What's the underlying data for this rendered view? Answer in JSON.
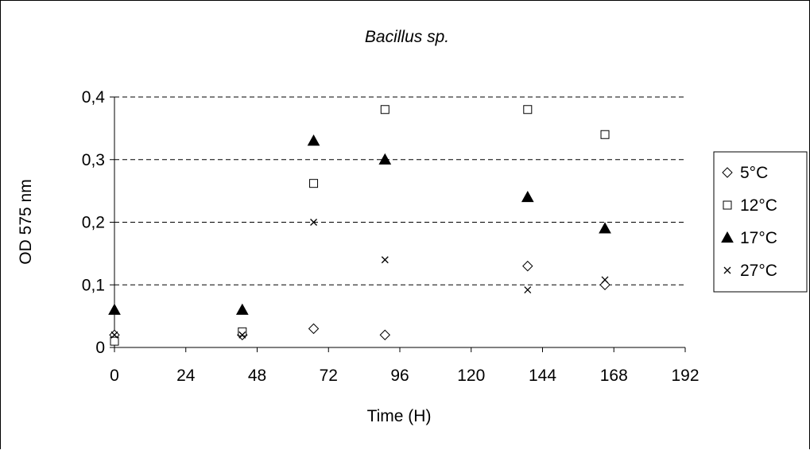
{
  "chart_data": {
    "type": "scatter",
    "title": "Bacillus sp.",
    "xlabel": "Time (H)",
    "ylabel": "OD 575 nm",
    "xlim": [
      0,
      192
    ],
    "ylim": [
      0,
      0.4
    ],
    "x_ticks": [
      "0",
      "24",
      "48",
      "72",
      "96",
      "120",
      "144",
      "168",
      "192"
    ],
    "x_tick_values": [
      0,
      24,
      48,
      72,
      96,
      120,
      144,
      168,
      192
    ],
    "y_ticks": [
      "0",
      "0,1",
      "0,2",
      "0,3",
      "0,4"
    ],
    "y_tick_values": [
      0,
      0.1,
      0.2,
      0.3,
      0.4
    ],
    "grid": "horizontal dashed",
    "legend_position": "right",
    "series": [
      {
        "name": "5°C",
        "marker": "diamond-open",
        "points": [
          [
            0,
            0.02
          ],
          [
            43,
            0.02
          ],
          [
            67,
            0.03
          ],
          [
            91,
            0.02
          ],
          [
            139,
            0.13
          ],
          [
            165,
            0.1
          ]
        ]
      },
      {
        "name": "12°C",
        "marker": "square-open",
        "points": [
          [
            0,
            0.01
          ],
          [
            43,
            0.025
          ],
          [
            67,
            0.262
          ],
          [
            91,
            0.38
          ],
          [
            139,
            0.38
          ],
          [
            165,
            0.34
          ]
        ]
      },
      {
        "name": "17°C",
        "marker": "triangle-filled",
        "points": [
          [
            0,
            0.06
          ],
          [
            43,
            0.06
          ],
          [
            67,
            0.33
          ],
          [
            91,
            0.3
          ],
          [
            139,
            0.24
          ],
          [
            165,
            0.19
          ]
        ]
      },
      {
        "name": "27°C",
        "marker": "x",
        "points": [
          [
            0,
            0.02
          ],
          [
            43,
            0.02
          ],
          [
            67,
            0.2
          ],
          [
            91,
            0.14
          ],
          [
            139,
            0.092
          ],
          [
            165,
            0.108
          ]
        ]
      }
    ]
  }
}
